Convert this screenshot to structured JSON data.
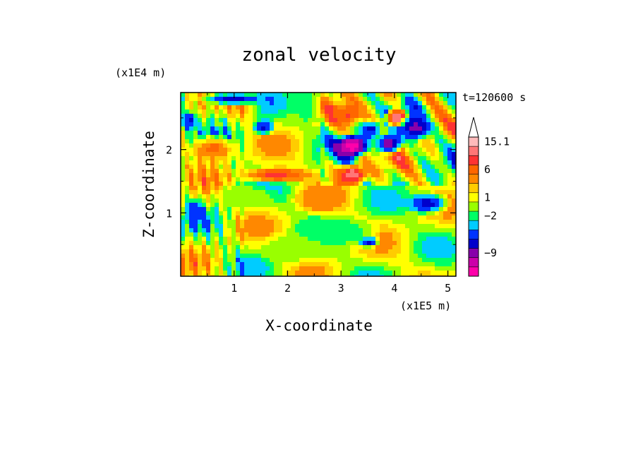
{
  "chart_data": {
    "type": "heatmap",
    "title": "zonal velocity",
    "xlabel": "X-coordinate",
    "ylabel": "Z-coordinate",
    "x_scale_label": "(x1E5 m)",
    "y_scale_label": "(x1E4 m)",
    "time_label": "t=120600 s",
    "xlim": [
      0,
      5.15
    ],
    "ylim": [
      0,
      2.9
    ],
    "x_ticks": [
      1,
      2,
      3,
      4,
      5
    ],
    "x_tick_labels": [
      "1",
      "2",
      "3",
      "4",
      "5"
    ],
    "y_ticks": [
      1,
      2
    ],
    "y_tick_labels": [
      "1",
      "2"
    ],
    "colorbar": {
      "colors": [
        "#ff00aa",
        "#cc00aa",
        "#8800aa",
        "#0000cc",
        "#0033ff",
        "#00ccff",
        "#00ff66",
        "#99ff00",
        "#ffff00",
        "#ffcc00",
        "#ff8800",
        "#ff6600",
        "#ff3333",
        "#ff7777",
        "#ffbbbb"
      ],
      "labels": [
        {
          "text": "15.1",
          "level": 14
        },
        {
          "text": "6",
          "level": 11
        },
        {
          "text": "1",
          "level": 8
        },
        {
          "text": "−2",
          "level": 6
        },
        {
          "text": "−9",
          "level": 2
        }
      ],
      "extend": "max"
    },
    "field_blobs": [
      {
        "x": 3.2,
        "y": 2.05,
        "rx": 0.35,
        "ry": 0.22,
        "v": 1
      },
      {
        "x": 2.65,
        "y": 1.2,
        "rx": 0.6,
        "ry": 0.25,
        "v": 10
      },
      {
        "x": 3.1,
        "y": 2.55,
        "rx": 0.35,
        "ry": 0.2,
        "v": 11
      },
      {
        "x": 3.55,
        "y": 2.3,
        "rx": 0.25,
        "ry": 0.18,
        "v": 4
      },
      {
        "x": 3.9,
        "y": 2.1,
        "rx": 0.3,
        "ry": 0.2,
        "v": 3
      },
      {
        "x": 4.05,
        "y": 2.5,
        "rx": 0.25,
        "ry": 0.18,
        "v": 12
      },
      {
        "x": 4.4,
        "y": 2.35,
        "rx": 0.35,
        "ry": 0.25,
        "v": 3
      },
      {
        "x": 4.6,
        "y": 1.15,
        "rx": 0.5,
        "ry": 0.2,
        "v": 4
      },
      {
        "x": 3.5,
        "y": 0.55,
        "rx": 0.25,
        "ry": 0.12,
        "v": 4
      },
      {
        "x": 1.55,
        "y": 2.35,
        "rx": 0.25,
        "ry": 0.15,
        "v": 4
      },
      {
        "x": 0.25,
        "y": 1.0,
        "rx": 0.2,
        "ry": 0.25,
        "v": 4
      },
      {
        "x": 0.15,
        "y": 2.45,
        "rx": 0.2,
        "ry": 0.2,
        "v": 4
      },
      {
        "x": 1.0,
        "y": 2.8,
        "rx": 0.7,
        "ry": 0.12,
        "v": 4
      },
      {
        "x": 1.2,
        "y": 1.25,
        "rx": 0.7,
        "ry": 0.25,
        "v": 7
      },
      {
        "x": 2.2,
        "y": 0.45,
        "rx": 0.9,
        "ry": 0.3,
        "v": 7
      },
      {
        "x": 3.0,
        "y": 0.7,
        "rx": 0.8,
        "ry": 0.25,
        "v": 6
      },
      {
        "x": 1.8,
        "y": 1.6,
        "rx": 0.8,
        "ry": 0.15,
        "v": 11
      },
      {
        "x": 0.6,
        "y": 2.0,
        "rx": 0.5,
        "ry": 0.25,
        "v": 10
      },
      {
        "x": 3.2,
        "y": 1.6,
        "rx": 0.35,
        "ry": 0.2,
        "v": 12
      }
    ]
  }
}
